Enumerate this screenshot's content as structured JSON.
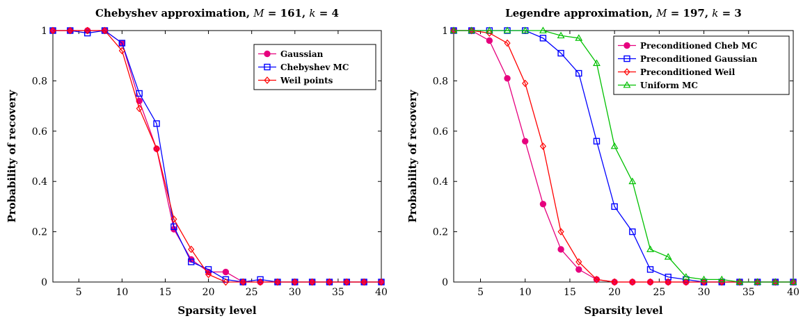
{
  "chart_data": [
    {
      "type": "line",
      "title": "Chebyshev approximation, M = 161, k = 4",
      "xlabel": "Sparsity level",
      "ylabel": "Probability of recovery",
      "xlim": [
        2,
        40
      ],
      "ylim": [
        0,
        1
      ],
      "xticks": [
        "5",
        "10",
        "15",
        "20",
        "25",
        "30",
        "35",
        "40"
      ],
      "yticks": [
        "0",
        "0.2",
        "0.4",
        "0.6",
        "0.8",
        "1"
      ],
      "grid": false,
      "legend_position": "top-right",
      "x": [
        2,
        4,
        6,
        8,
        10,
        12,
        14,
        16,
        18,
        20,
        22,
        24,
        26,
        28,
        30,
        32,
        34,
        36,
        38,
        40
      ],
      "series": [
        {
          "name": "Gaussian",
          "color": "#e6007e",
          "marker": "circle",
          "values": [
            1,
            1,
            1,
            1,
            0.95,
            0.72,
            0.53,
            0.21,
            0.09,
            0.04,
            0.04,
            0,
            0,
            0,
            0,
            0,
            0,
            0,
            0,
            0
          ]
        },
        {
          "name": "Chebyshev MC",
          "color": "#0000ff",
          "marker": "square",
          "values": [
            1,
            1,
            0.99,
            1,
            0.95,
            0.75,
            0.63,
            0.22,
            0.08,
            0.05,
            0.01,
            0,
            0.01,
            0,
            0,
            0,
            0,
            0,
            0,
            0
          ]
        },
        {
          "name": "Weil points",
          "color": "#ff0000",
          "marker": "diamond",
          "values": [
            1,
            1,
            1,
            1,
            0.92,
            0.69,
            0.53,
            0.25,
            0.13,
            0.03,
            0,
            0,
            0,
            0,
            0,
            0,
            0,
            0,
            0,
            0
          ]
        }
      ]
    },
    {
      "type": "line",
      "title": "Legendre approximation, M = 197, k = 3",
      "xlabel": "Sparsity level",
      "ylabel": "Probability of recovery",
      "xlim": [
        2,
        40
      ],
      "ylim": [
        0,
        1
      ],
      "xticks": [
        "5",
        "10",
        "15",
        "20",
        "25",
        "30",
        "35",
        "40"
      ],
      "yticks": [
        "0",
        "0.2",
        "0.4",
        "0.6",
        "0.8",
        "1"
      ],
      "grid": false,
      "legend_position": "top-right",
      "x": [
        2,
        4,
        6,
        8,
        10,
        12,
        14,
        16,
        18,
        20,
        22,
        24,
        26,
        28,
        30,
        32,
        34,
        36,
        38,
        40
      ],
      "series": [
        {
          "name": "Preconditioned Cheb MC",
          "color": "#e6007e",
          "marker": "circle",
          "values": [
            1,
            1,
            0.96,
            0.81,
            0.56,
            0.31,
            0.13,
            0.05,
            0.01,
            0,
            0,
            0,
            0,
            0,
            0,
            0,
            0,
            0,
            0,
            0
          ]
        },
        {
          "name": "Preconditioned Gaussian",
          "color": "#0000ff",
          "marker": "square",
          "values": [
            1,
            1,
            1,
            1,
            1,
            0.97,
            0.91,
            0.83,
            0.56,
            0.3,
            0.2,
            0.05,
            0.02,
            0.01,
            0,
            0,
            0,
            0,
            0,
            0
          ]
        },
        {
          "name": "Preconditioned Weil",
          "color": "#ff0000",
          "marker": "diamond",
          "values": [
            1,
            1,
            0.99,
            0.95,
            0.79,
            0.54,
            0.2,
            0.08,
            0.01,
            0,
            0,
            0,
            0,
            0,
            0,
            0,
            0,
            0,
            0,
            0
          ]
        },
        {
          "name": "Uniform MC",
          "color": "#00c000",
          "marker": "triangle",
          "values": [
            1,
            1,
            1,
            1,
            1,
            1,
            0.98,
            0.97,
            0.87,
            0.54,
            0.4,
            0.13,
            0.1,
            0.02,
            0.01,
            0.01,
            0,
            0,
            0,
            0
          ]
        }
      ]
    }
  ]
}
